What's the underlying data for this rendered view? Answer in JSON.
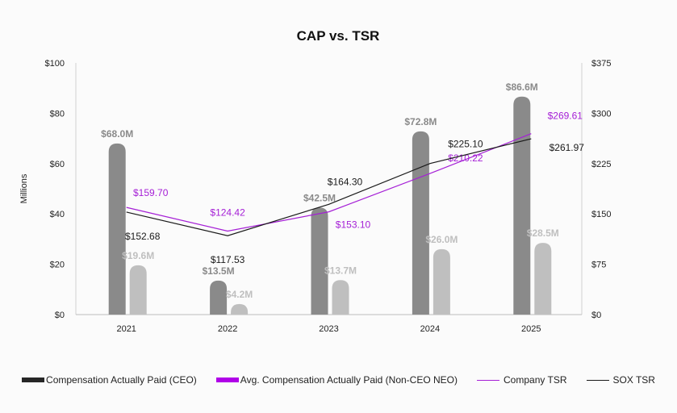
{
  "chart_data": {
    "type": "bar+line",
    "title": "CAP vs. TSR",
    "ylabel": "Millions",
    "categories": [
      "2021",
      "2022",
      "2023",
      "2024",
      "2025"
    ],
    "ylim": [
      0,
      100
    ],
    "y_ticks": [
      "$0",
      "$20",
      "$40",
      "$60",
      "$80",
      "$100"
    ],
    "y2lim": [
      0,
      375
    ],
    "y2_ticks": [
      "$0",
      "$75",
      "$150",
      "$225",
      "$300",
      "$375"
    ],
    "grid": false,
    "legend_position": "bottom",
    "series": [
      {
        "name": "Compensation Actually Paid (CEO)",
        "type": "bar",
        "axis": "left",
        "values": [
          68.0,
          13.5,
          42.5,
          72.8,
          86.6
        ],
        "labels": [
          "$68.0M",
          "$13.5M",
          "$42.5M",
          "$72.8M",
          "$86.6M"
        ],
        "color": "#8a8a8a",
        "legend_color": "#262626"
      },
      {
        "name": "Avg. Compensation Actually Paid (Non-CEO NEO)",
        "type": "bar",
        "axis": "left",
        "values": [
          19.6,
          4.2,
          13.7,
          26.0,
          28.5
        ],
        "labels": [
          "$19.6M",
          "$4.2M",
          "$13.7M",
          "$26.0M",
          "$28.5M"
        ],
        "color": "#bfbfbf",
        "legend_color": "#b000e8"
      },
      {
        "name": "Company TSR",
        "type": "line",
        "axis": "right",
        "values": [
          159.7,
          124.42,
          153.1,
          210.22,
          269.61
        ],
        "labels": [
          "$159.70",
          "$124.42",
          "$153.10",
          "$210.22",
          "$269.61"
        ],
        "color": "#a51fd6"
      },
      {
        "name": "SOX TSR",
        "type": "line",
        "axis": "right",
        "values": [
          152.68,
          117.53,
          164.3,
          225.1,
          261.97
        ],
        "labels": [
          "$152.68",
          "$117.53",
          "$164.30",
          "$225.10",
          "$261.97"
        ],
        "color": "#1a1a1a"
      }
    ]
  }
}
